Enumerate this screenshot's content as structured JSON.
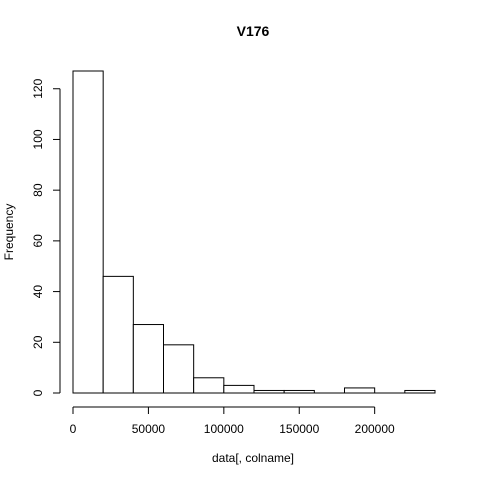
{
  "chart_data": {
    "type": "histogram",
    "title": "V176",
    "xlabel": "data[, colname]",
    "ylabel": "Frequency",
    "bin_edges": [
      0,
      20000,
      40000,
      60000,
      80000,
      100000,
      120000,
      140000,
      160000,
      180000,
      200000,
      220000,
      240000
    ],
    "counts": [
      127,
      46,
      27,
      19,
      6,
      3,
      1,
      1,
      0,
      2,
      0,
      1
    ],
    "xlim": [
      0,
      240000
    ],
    "ylim": [
      0,
      127
    ],
    "x_ticks": [
      0,
      50000,
      100000,
      150000,
      200000
    ],
    "x_tick_labels": [
      "0",
      "50000",
      "100000",
      "150000",
      "200000"
    ],
    "y_ticks": [
      0,
      20,
      40,
      60,
      80,
      100,
      120
    ],
    "y_tick_labels": [
      "0",
      "20",
      "40",
      "60",
      "80",
      "100",
      "120"
    ],
    "grid": false,
    "legend": "none"
  }
}
